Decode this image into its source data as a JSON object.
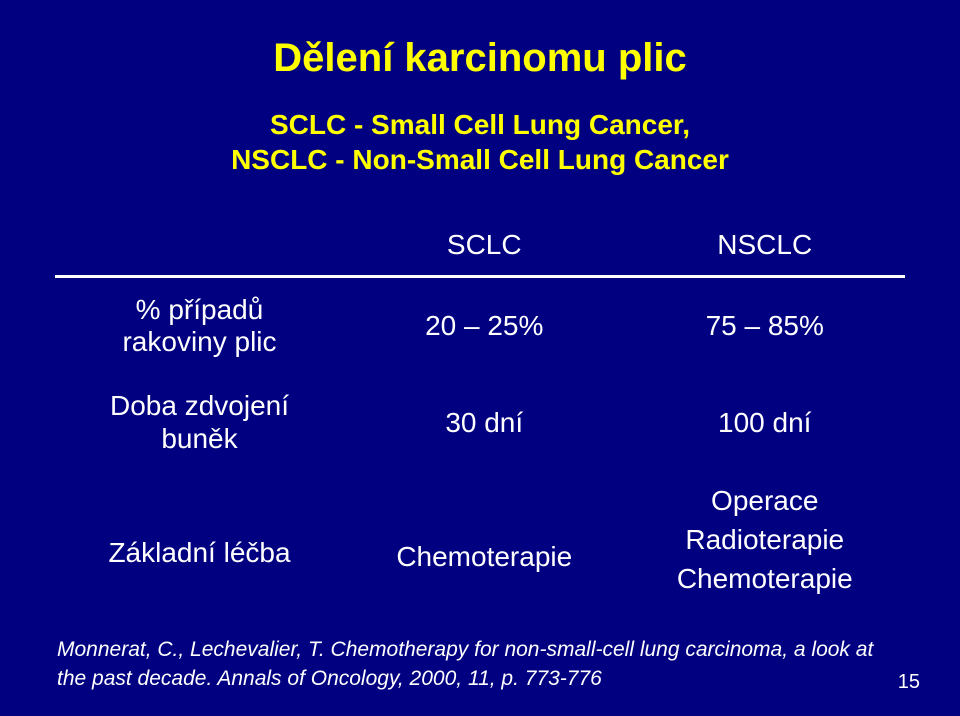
{
  "title": "Dělení karcinomu plic",
  "subtitle_line1": "SCLC - Small Cell Lung Cancer,",
  "subtitle_line2": "NSCLC - Non-Small Cell Lung Cancer",
  "table": {
    "head": {
      "blank": "",
      "sclc": "SCLC",
      "nsclc": "NSCLC"
    },
    "rows": [
      {
        "label_l1": "% případů",
        "label_l2": "rakoviny plic",
        "sclc": "20 – 25%",
        "nsclc": "75 – 85%"
      },
      {
        "label_l1": "Doba zdvojení",
        "label_l2": "buněk",
        "sclc": "30 dní",
        "nsclc": "100 dní"
      }
    ],
    "treatment": {
      "label": "Základní léčba",
      "sclc": "Chemoterapie",
      "nsclc_l1": "Operace",
      "nsclc_l2": "Radioterapie",
      "nsclc_l3": "Chemoterapie"
    }
  },
  "citation": "Monnerat, C., Lechevalier, T. Chemotherapy for non-small-cell lung carcinoma, a look at the past decade. Annals of Oncology, 2000, 11, p. 773-776",
  "pagenum": "15",
  "colors": {
    "background": "#000080",
    "title": "#ffff00",
    "text": "#ffffff",
    "border": "#ffffff"
  }
}
